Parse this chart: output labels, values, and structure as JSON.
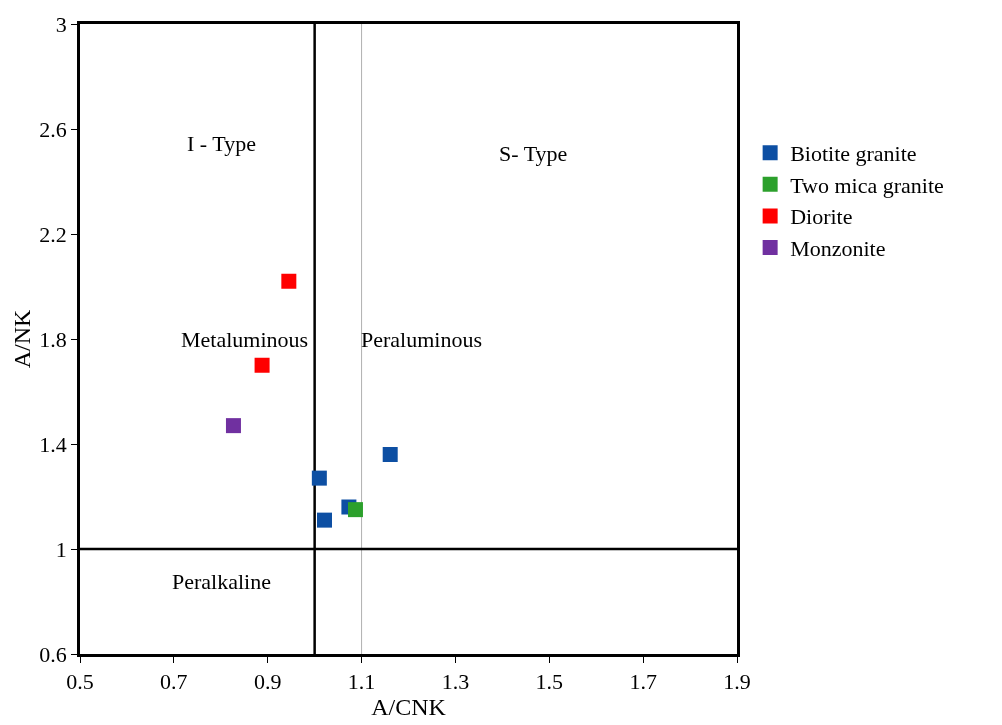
{
  "chart_data": {
    "type": "scatter",
    "xlabel": "A/CNK",
    "ylabel": "A/NK",
    "xlim": [
      0.5,
      1.9
    ],
    "xticks": [
      0.5,
      0.7,
      0.9,
      1.1,
      1.3,
      1.5,
      1.7,
      1.9
    ],
    "ylim": [
      0.6,
      3
    ],
    "yticks": [
      0.6,
      1,
      1.4,
      1.8,
      2.2,
      2.6,
      3
    ],
    "grid": false,
    "legend": "right",
    "marker": "square",
    "series": [
      {
        "name": "Biotite granite",
        "color": "#0d4fa3",
        "x": [
          1.161,
          1.01,
          1.073,
          1.021
        ],
        "values": [
          1.36,
          1.27,
          1.16,
          1.11
        ]
      },
      {
        "name": "Two mica granite",
        "color": "#2ca02c",
        "x": [
          1.087
        ],
        "values": [
          1.15
        ]
      },
      {
        "name": "Diorite",
        "color": "#ff0000",
        "x": [
          0.945,
          0.888
        ],
        "values": [
          2.02,
          1.7
        ]
      },
      {
        "name": "Monzonite",
        "color": "#7030a0",
        "x": [
          0.827
        ],
        "values": [
          1.47
        ]
      }
    ],
    "ref_lines": [
      {
        "axis": "x",
        "value": 1,
        "color": "#000000"
      },
      {
        "axis": "x",
        "value": 1.1,
        "color": "#b0b0b0"
      },
      {
        "axis": "y",
        "value": 1,
        "color": "#000000"
      }
    ],
    "annotations": [
      "I - Type",
      "S- Type",
      "Metaluminous",
      "Peraluminous",
      "Peralkaline"
    ]
  }
}
